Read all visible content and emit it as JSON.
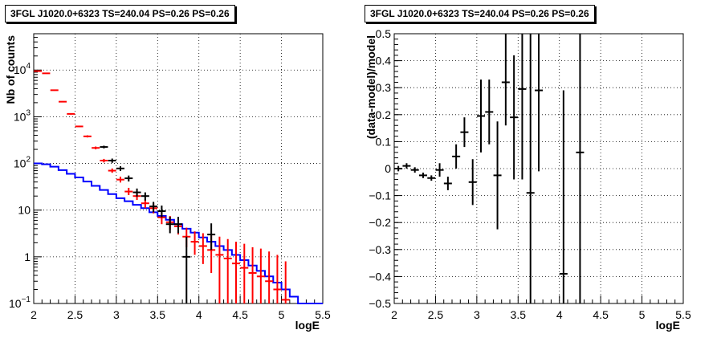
{
  "chart_data": [
    {
      "type": "step+errorbar",
      "title": "3FGL J1020.0+6323 TS=240.04 PS=0.26 PS=0.26",
      "xlabel": "logE",
      "ylabel": "Nb of counts",
      "xlim": [
        2,
        5.5
      ],
      "ylim": [
        0.1,
        60000
      ],
      "yscale": "log",
      "grid": true,
      "x_ticks": [
        "2",
        "2.5",
        "3",
        "3.5",
        "4",
        "4.5",
        "5",
        "5.5"
      ],
      "y_ticks": [
        {
          "v": 0.1,
          "base": "10",
          "exp": "−1"
        },
        {
          "v": 1,
          "base": "1",
          "exp": ""
        },
        {
          "v": 10,
          "base": "10",
          "exp": ""
        },
        {
          "v": 100,
          "base": "10",
          "exp": "2"
        },
        {
          "v": 1000,
          "base": "10",
          "exp": "3"
        },
        {
          "v": 10000,
          "base": "10",
          "exp": "4"
        }
      ],
      "bin_edges": [
        2.0,
        2.1,
        2.2,
        2.3,
        2.4,
        2.5,
        2.6,
        2.7,
        2.8,
        2.9,
        3.0,
        3.1,
        3.2,
        3.3,
        3.4,
        3.5,
        3.6,
        3.7,
        3.8,
        3.9,
        4.0,
        4.1,
        4.2,
        4.3,
        4.4,
        4.5,
        4.6,
        4.7,
        4.8,
        4.9,
        5.0,
        5.1,
        5.2,
        5.3,
        5.4,
        5.5
      ],
      "series": [
        {
          "color": "#0000ff",
          "style": "step",
          "values": [
            100,
            96,
            85,
            72,
            60,
            50,
            41,
            33,
            27,
            22,
            18,
            15.5,
            13,
            11,
            9,
            7.5,
            6.2,
            5,
            4,
            3.3,
            2.6,
            2.1,
            1.7,
            1.4,
            1.1,
            0.85,
            0.65,
            0.5,
            0.38,
            0.28,
            0.2,
            0.14,
            0.1,
            0.1,
            0.1
          ]
        },
        {
          "color": "#ff0000",
          "style": "errorbar",
          "x": [
            2.05,
            2.15,
            2.25,
            2.35,
            2.45,
            2.55,
            2.65,
            2.75,
            2.85,
            2.95,
            3.05,
            3.15,
            3.25,
            3.35,
            3.45,
            3.55,
            3.65,
            3.75,
            3.85,
            3.95,
            4.05,
            4.15,
            4.25,
            4.35,
            4.45,
            4.55,
            4.65,
            4.75,
            4.85,
            4.95,
            5.05
          ],
          "values": [
            9500,
            8500,
            3700,
            2100,
            1150,
            620,
            380,
            215,
            115,
            70,
            45,
            25,
            20,
            14,
            11,
            7,
            5.5,
            4.5,
            2.7,
            2.1,
            1.7,
            1.4,
            1.1,
            0.92,
            0.72,
            0.58,
            0.45,
            0.38,
            0.3,
            0.2,
            0.12
          ],
          "err_low": [
            9300,
            8300,
            3600,
            2040,
            1110,
            595,
            360,
            200,
            105,
            63,
            39,
            21,
            16.5,
            11,
            8.5,
            5,
            3.8,
            3,
            1.6,
            1.1,
            0.7,
            0.45,
            0.1,
            0.1,
            0.1,
            0.1,
            0.1,
            0.1,
            0.1,
            0.1,
            0.1
          ],
          "err_high": [
            9700,
            8700,
            3800,
            2160,
            1190,
            645,
            400,
            230,
            125,
            78,
            52,
            30,
            24,
            17,
            14,
            9.5,
            7.5,
            6.5,
            4.2,
            3.5,
            3.2,
            2.9,
            2.7,
            2.4,
            2.1,
            1.9,
            1.6,
            1.5,
            1.3,
            1.1,
            0.8
          ]
        },
        {
          "color": "#000000",
          "style": "errorbar",
          "x": [
            2.85,
            2.95,
            3.05,
            3.15,
            3.25,
            3.35,
            3.45,
            3.55,
            3.65,
            3.75,
            3.85,
            4.15
          ],
          "values": [
            225,
            115,
            78,
            48,
            24,
            20,
            12,
            9.5,
            5,
            5,
            1,
            3
          ],
          "err_low": [
            210,
            103,
            69,
            41,
            19.5,
            16,
            9,
            7,
            3.2,
            3.2,
            0.1,
            1.4
          ],
          "err_high": [
            240,
            127,
            87,
            55,
            29,
            24,
            15,
            12.5,
            7.2,
            7.2,
            2.7,
            5.2
          ]
        }
      ]
    },
    {
      "type": "errorbar",
      "title": "3FGL J1020.0+6323 TS=240.04 PS=0.26 PS=0.26",
      "xlabel": "logE",
      "ylabel": "(data-model)/model",
      "xlim": [
        2,
        5.5
      ],
      "ylim": [
        -0.5,
        0.5
      ],
      "grid": true,
      "x_ticks": [
        "2",
        "2.5",
        "3",
        "3.5",
        "4",
        "4.5",
        "5",
        "5.5"
      ],
      "y_ticks": [
        "−0.5",
        "−0.4",
        "−0.3",
        "−0.2",
        "−0.1",
        "0",
        "0.1",
        "0.2",
        "0.3",
        "0.4",
        "0.5"
      ],
      "series": [
        {
          "color": "#000000",
          "x": [
            2.05,
            2.15,
            2.25,
            2.35,
            2.45,
            2.55,
            2.65,
            2.75,
            2.85,
            2.95,
            3.05,
            3.15,
            3.25,
            3.35,
            3.45,
            3.55,
            3.65,
            3.75,
            4.05,
            4.25
          ],
          "values": [
            0.0,
            0.01,
            -0.005,
            -0.025,
            -0.035,
            -0.005,
            -0.055,
            0.045,
            0.135,
            -0.05,
            0.195,
            0.21,
            -0.025,
            0.32,
            0.19,
            0.295,
            -0.09,
            0.29,
            -0.39,
            0.06
          ],
          "err_low": [
            -0.01,
            0.0,
            -0.015,
            -0.035,
            -0.045,
            -0.03,
            -0.08,
            0.0,
            0.08,
            -0.135,
            0.06,
            0.09,
            -0.225,
            0.16,
            -0.04,
            -0.04,
            -0.5,
            -0.01,
            -0.5,
            -0.5
          ],
          "err_high": [
            0.01,
            0.02,
            0.005,
            -0.015,
            -0.025,
            0.02,
            -0.03,
            0.09,
            0.19,
            0.035,
            0.33,
            0.33,
            0.175,
            0.5,
            0.42,
            0.5,
            0.5,
            0.5,
            0.29,
            0.5
          ]
        }
      ]
    }
  ]
}
